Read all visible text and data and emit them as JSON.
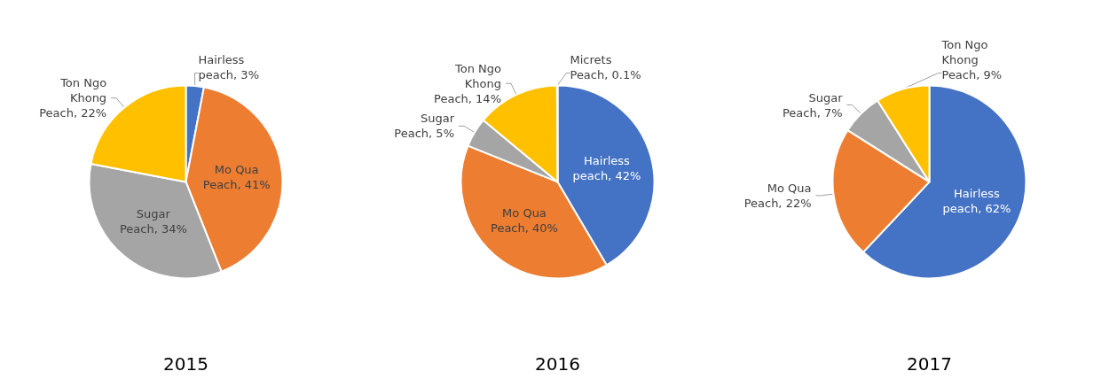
{
  "chart_data": [
    {
      "type": "pie",
      "title": "2015",
      "categories": [
        "Hairless peach",
        "Mo Qua Peach",
        "Sugar Peach",
        "Ton Ngo Khong Peach"
      ],
      "values": [
        3,
        41,
        34,
        22
      ],
      "value_labels": [
        "3%",
        "41%",
        "34%",
        "22%"
      ],
      "colors": [
        "#4472c4",
        "#ed7d31",
        "#a5a5a5",
        "#ffc000"
      ],
      "legend": false
    },
    {
      "type": "pie",
      "title": "2016",
      "categories": [
        "Hairless peach",
        "Mo Qua Peach",
        "Sugar Peach",
        "Ton Ngo Khong Peach",
        "Micrets Peach"
      ],
      "values": [
        42,
        40,
        5,
        14,
        0.1
      ],
      "value_labels": [
        "42%",
        "40%",
        "5%",
        "14%",
        "0.1%"
      ],
      "colors": [
        "#4472c4",
        "#ed7d31",
        "#a5a5a5",
        "#ffc000",
        "#70ad47"
      ],
      "legend": false
    },
    {
      "type": "pie",
      "title": "2017",
      "categories": [
        "Hairless peach",
        "Mo Qua Peach",
        "Sugar Peach",
        "Ton Ngo Khong Peach"
      ],
      "values": [
        62,
        22,
        7,
        9
      ],
      "value_labels": [
        "62%",
        "22%",
        "7%",
        "9%"
      ],
      "colors": [
        "#4472c4",
        "#ed7d31",
        "#a5a5a5",
        "#ffc000"
      ],
      "legend": false
    }
  ]
}
